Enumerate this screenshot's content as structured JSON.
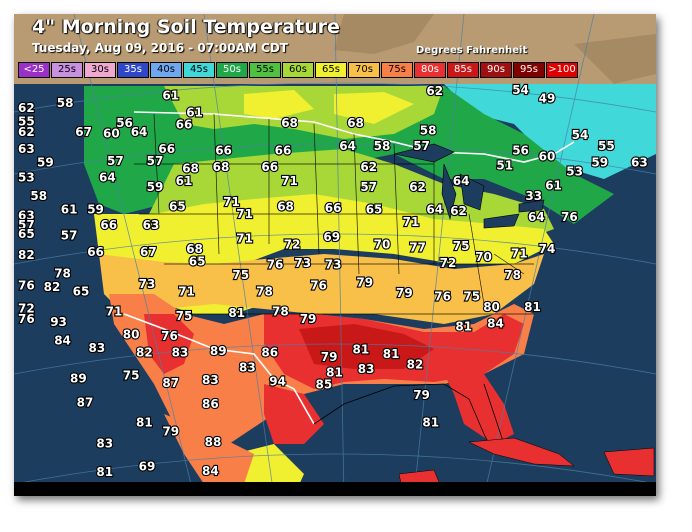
{
  "title": "4\" Morning Soil Temperature",
  "subtitle": "Tuesday, Aug 09, 2016 - 07:00AM CDT",
  "units": "Degrees Fahrenheit",
  "legend": [
    {
      "label": "<25",
      "color": "#9b30c8"
    },
    {
      "label": "25s",
      "color": "#c890e0"
    },
    {
      "label": "30s",
      "color": "#f0a8d0"
    },
    {
      "label": "35s",
      "color": "#3048c8"
    },
    {
      "label": "40s",
      "color": "#70a8f0"
    },
    {
      "label": "45s",
      "color": "#40d8d8"
    },
    {
      "label": "50s",
      "color": "#20a848"
    },
    {
      "label": "55s",
      "color": "#50c040"
    },
    {
      "label": "60s",
      "color": "#a8d838"
    },
    {
      "label": "65s",
      "color": "#f0f030"
    },
    {
      "label": "70s",
      "color": "#f8c048"
    },
    {
      "label": "75s",
      "color": "#f88048"
    },
    {
      "label": "80s",
      "color": "#e83030"
    },
    {
      "label": "85s",
      "color": "#c81818"
    },
    {
      "label": "90s",
      "color": "#a01010"
    },
    {
      "label": "95s",
      "color": "#800000"
    },
    {
      "label": ">100",
      "color": "#e00000"
    }
  ],
  "map_colors": {
    "ocean": "#1c3d5e",
    "land_outside": "#b89b72",
    "gridline": "#4a7fa8",
    "border": "#000000",
    "national_border": "#ffffff"
  },
  "labels": [
    {
      "v": "62",
      "x": -124.6,
      "y": 48.5
    },
    {
      "v": "58",
      "x": -121.0,
      "y": 48.8
    },
    {
      "v": "61",
      "x": -113.0,
      "y": 49.3
    },
    {
      "v": "61",
      "x": -111.2,
      "y": 48.2
    },
    {
      "v": "62",
      "x": -93.0,
      "y": 49.6
    },
    {
      "v": "54",
      "x": -86.5,
      "y": 49.8
    },
    {
      "v": "49",
      "x": -84.5,
      "y": 49.1
    },
    {
      "v": "55",
      "x": -124.4,
      "y": 47.6
    },
    {
      "v": "56",
      "x": -116.5,
      "y": 47.5
    },
    {
      "v": "66",
      "x": -112.0,
      "y": 47.4
    },
    {
      "v": "62",
      "x": -124.9,
      "y": 46.9
    },
    {
      "v": "67",
      "x": -119.6,
      "y": 46.9
    },
    {
      "v": "60",
      "x": -117.5,
      "y": 46.8
    },
    {
      "v": "64",
      "x": -115.4,
      "y": 46.9
    },
    {
      "v": "68",
      "x": -104.0,
      "y": 47.5
    },
    {
      "v": "68",
      "x": -99.0,
      "y": 47.5
    },
    {
      "v": "58",
      "x": -93.5,
      "y": 47.0
    },
    {
      "v": "54",
      "x": -82.0,
      "y": 46.7
    },
    {
      "v": "55",
      "x": -80.0,
      "y": 46.0
    },
    {
      "v": "63",
      "x": -124.4,
      "y": 45.8
    },
    {
      "v": "66",
      "x": -113.3,
      "y": 45.8
    },
    {
      "v": "66",
      "x": -109.0,
      "y": 45.7
    },
    {
      "v": "66",
      "x": -104.5,
      "y": 45.7
    },
    {
      "v": "64",
      "x": -99.6,
      "y": 46.0
    },
    {
      "v": "58",
      "x": -97.0,
      "y": 46.0
    },
    {
      "v": "57",
      "x": -94.0,
      "y": 46.0
    },
    {
      "v": "56",
      "x": -86.5,
      "y": 45.7
    },
    {
      "v": "60",
      "x": -84.5,
      "y": 45.3
    },
    {
      "v": "59",
      "x": -80.5,
      "y": 44.9
    },
    {
      "v": "63",
      "x": -77.5,
      "y": 44.9
    },
    {
      "v": "59",
      "x": -122.5,
      "y": 44.9
    },
    {
      "v": "57",
      "x": -117.2,
      "y": 45.0
    },
    {
      "v": "57",
      "x": -114.2,
      "y": 45.0
    },
    {
      "v": "68",
      "x": -111.5,
      "y": 44.5
    },
    {
      "v": "68",
      "x": -109.2,
      "y": 44.6
    },
    {
      "v": "66",
      "x": -105.5,
      "y": 44.6
    },
    {
      "v": "62",
      "x": -98.0,
      "y": 44.6
    },
    {
      "v": "51",
      "x": -87.7,
      "y": 44.7
    },
    {
      "v": "53",
      "x": -82.4,
      "y": 44.3
    },
    {
      "v": "53",
      "x": -125.2,
      "y": 43.9
    },
    {
      "v": "64",
      "x": -117.8,
      "y": 43.9
    },
    {
      "v": "59",
      "x": -114.2,
      "y": 43.3
    },
    {
      "v": "61",
      "x": -112.0,
      "y": 43.7
    },
    {
      "v": "71",
      "x": -104.0,
      "y": 43.7
    },
    {
      "v": "57",
      "x": -98.0,
      "y": 43.3
    },
    {
      "v": "62",
      "x": -94.3,
      "y": 43.3
    },
    {
      "v": "64",
      "x": -91.0,
      "y": 43.7
    },
    {
      "v": "61",
      "x": -84.0,
      "y": 43.4
    },
    {
      "v": "58",
      "x": -123.0,
      "y": 42.7
    },
    {
      "v": "71",
      "x": -108.4,
      "y": 42.3
    },
    {
      "v": "33",
      "x": -85.5,
      "y": 42.7
    },
    {
      "v": "61",
      "x": -120.7,
      "y": 41.8
    },
    {
      "v": "59",
      "x": -118.7,
      "y": 41.8
    },
    {
      "v": "65",
      "x": -112.5,
      "y": 42.0
    },
    {
      "v": "71",
      "x": -107.4,
      "y": 41.5
    },
    {
      "v": "68",
      "x": -104.3,
      "y": 42.0
    },
    {
      "v": "66",
      "x": -100.7,
      "y": 41.9
    },
    {
      "v": "65",
      "x": -97.6,
      "y": 41.8
    },
    {
      "v": "64",
      "x": -93.0,
      "y": 41.8
    },
    {
      "v": "62",
      "x": -91.2,
      "y": 41.7
    },
    {
      "v": "64",
      "x": -85.3,
      "y": 41.3
    },
    {
      "v": "76",
      "x": -82.8,
      "y": 41.3
    },
    {
      "v": "63",
      "x": -127.0,
      "y": 41.4
    },
    {
      "v": "57",
      "x": -124.4,
      "y": 40.8
    },
    {
      "v": "66",
      "x": -117.7,
      "y": 40.8
    },
    {
      "v": "63",
      "x": -114.5,
      "y": 40.8
    },
    {
      "v": "71",
      "x": -94.8,
      "y": 41.0
    },
    {
      "v": "65",
      "x": -126.2,
      "y": 40.2
    },
    {
      "v": "57",
      "x": -120.7,
      "y": 40.1
    },
    {
      "v": "71",
      "x": -107.4,
      "y": 39.9
    },
    {
      "v": "72",
      "x": -103.8,
      "y": 39.5
    },
    {
      "v": "69",
      "x": -100.8,
      "y": 40.0
    },
    {
      "v": "70",
      "x": -97.0,
      "y": 39.5
    },
    {
      "v": "77",
      "x": -94.3,
      "y": 39.3
    },
    {
      "v": "75",
      "x": -91.0,
      "y": 39.4
    },
    {
      "v": "82",
      "x": -124.4,
      "y": 38.8
    },
    {
      "v": "66",
      "x": -118.7,
      "y": 39.0
    },
    {
      "v": "67",
      "x": -114.7,
      "y": 39.0
    },
    {
      "v": "68",
      "x": -111.2,
      "y": 39.2
    },
    {
      "v": "72",
      "x": -92.0,
      "y": 38.3
    },
    {
      "v": "70",
      "x": -89.3,
      "y": 38.7
    },
    {
      "v": "71",
      "x": -86.6,
      "y": 38.9
    },
    {
      "v": "74",
      "x": -84.5,
      "y": 39.2
    },
    {
      "v": "65",
      "x": -111.0,
      "y": 38.4
    },
    {
      "v": "76",
      "x": -105.1,
      "y": 38.2
    },
    {
      "v": "73",
      "x": -103.0,
      "y": 38.3
    },
    {
      "v": "73",
      "x": -100.7,
      "y": 38.2
    },
    {
      "v": "78",
      "x": -121.2,
      "y": 37.6
    },
    {
      "v": "75",
      "x": -107.7,
      "y": 37.5
    },
    {
      "v": "73",
      "x": -114.8,
      "y": 36.9
    },
    {
      "v": "76",
      "x": -101.8,
      "y": 36.8
    },
    {
      "v": "79",
      "x": -98.3,
      "y": 37.0
    },
    {
      "v": "78",
      "x": -87.1,
      "y": 37.5
    },
    {
      "v": "76",
      "x": -126.3,
      "y": 36.8
    },
    {
      "v": "82",
      "x": -122.0,
      "y": 36.7
    },
    {
      "v": "65",
      "x": -119.8,
      "y": 36.4
    },
    {
      "v": "71",
      "x": -111.8,
      "y": 36.4
    },
    {
      "v": "78",
      "x": -105.9,
      "y": 36.4
    },
    {
      "v": "79",
      "x": -95.3,
      "y": 36.3
    },
    {
      "v": "76",
      "x": -92.4,
      "y": 36.1
    },
    {
      "v": "75",
      "x": -90.2,
      "y": 36.1
    },
    {
      "v": "80",
      "x": -88.7,
      "y": 35.4
    },
    {
      "v": "81",
      "x": -85.6,
      "y": 35.4
    },
    {
      "v": "72",
      "x": -125.8,
      "y": 35.3
    },
    {
      "v": "71",
      "x": -117.3,
      "y": 35.1
    },
    {
      "v": "75",
      "x": -112.0,
      "y": 34.8
    },
    {
      "v": "81",
      "x": -108.0,
      "y": 35.0
    },
    {
      "v": "78",
      "x": -104.7,
      "y": 35.1
    },
    {
      "v": "79",
      "x": -102.6,
      "y": 34.6
    },
    {
      "v": "93",
      "x": -121.5,
      "y": 34.4
    },
    {
      "v": "76",
      "x": -124.7,
      "y": 34.6
    },
    {
      "v": "84",
      "x": -88.4,
      "y": 34.3
    },
    {
      "v": "81",
      "x": -90.8,
      "y": 34.1
    },
    {
      "v": "80",
      "x": -116.0,
      "y": 33.6
    },
    {
      "v": "76",
      "x": -113.1,
      "y": 33.5
    },
    {
      "v": "84",
      "x": -121.2,
      "y": 33.2
    },
    {
      "v": "83",
      "x": -118.6,
      "y": 32.7
    },
    {
      "v": "82",
      "x": -115.0,
      "y": 32.4
    },
    {
      "v": "83",
      "x": -112.3,
      "y": 32.4
    },
    {
      "v": "89",
      "x": -109.4,
      "y": 32.5
    },
    {
      "v": "86",
      "x": -105.5,
      "y": 32.4
    },
    {
      "v": "79",
      "x": -101.0,
      "y": 32.1
    },
    {
      "v": "81",
      "x": -98.6,
      "y": 32.6
    },
    {
      "v": "81",
      "x": -96.3,
      "y": 32.3
    },
    {
      "v": "83",
      "x": -107.2,
      "y": 31.4
    },
    {
      "v": "81",
      "x": -100.6,
      "y": 31.1
    },
    {
      "v": "83",
      "x": -98.2,
      "y": 31.3
    },
    {
      "v": "82",
      "x": -94.5,
      "y": 31.6
    },
    {
      "v": "89",
      "x": -120.0,
      "y": 30.7
    },
    {
      "v": "75",
      "x": -116.0,
      "y": 30.9
    },
    {
      "v": "87",
      "x": -113.0,
      "y": 30.4
    },
    {
      "v": "83",
      "x": -110.0,
      "y": 30.6
    },
    {
      "v": "94",
      "x": -104.9,
      "y": 30.5
    },
    {
      "v": "85",
      "x": -101.4,
      "y": 30.3
    },
    {
      "v": "79",
      "x": -94.0,
      "y": 29.6
    },
    {
      "v": "87",
      "x": -119.5,
      "y": 29.1
    },
    {
      "v": "86",
      "x": -110.0,
      "y": 29.0
    },
    {
      "v": "81",
      "x": -93.3,
      "y": 27.8
    },
    {
      "v": "81",
      "x": -115.0,
      "y": 27.8
    },
    {
      "v": "79",
      "x": -113.0,
      "y": 27.2
    },
    {
      "v": "88",
      "x": -109.8,
      "y": 26.5
    },
    {
      "v": "83",
      "x": -118.0,
      "y": 26.4
    },
    {
      "v": "69",
      "x": -114.8,
      "y": 24.9
    },
    {
      "v": "81",
      "x": -118.0,
      "y": 24.5
    },
    {
      "v": "84",
      "x": -110.0,
      "y": 24.6
    }
  ]
}
